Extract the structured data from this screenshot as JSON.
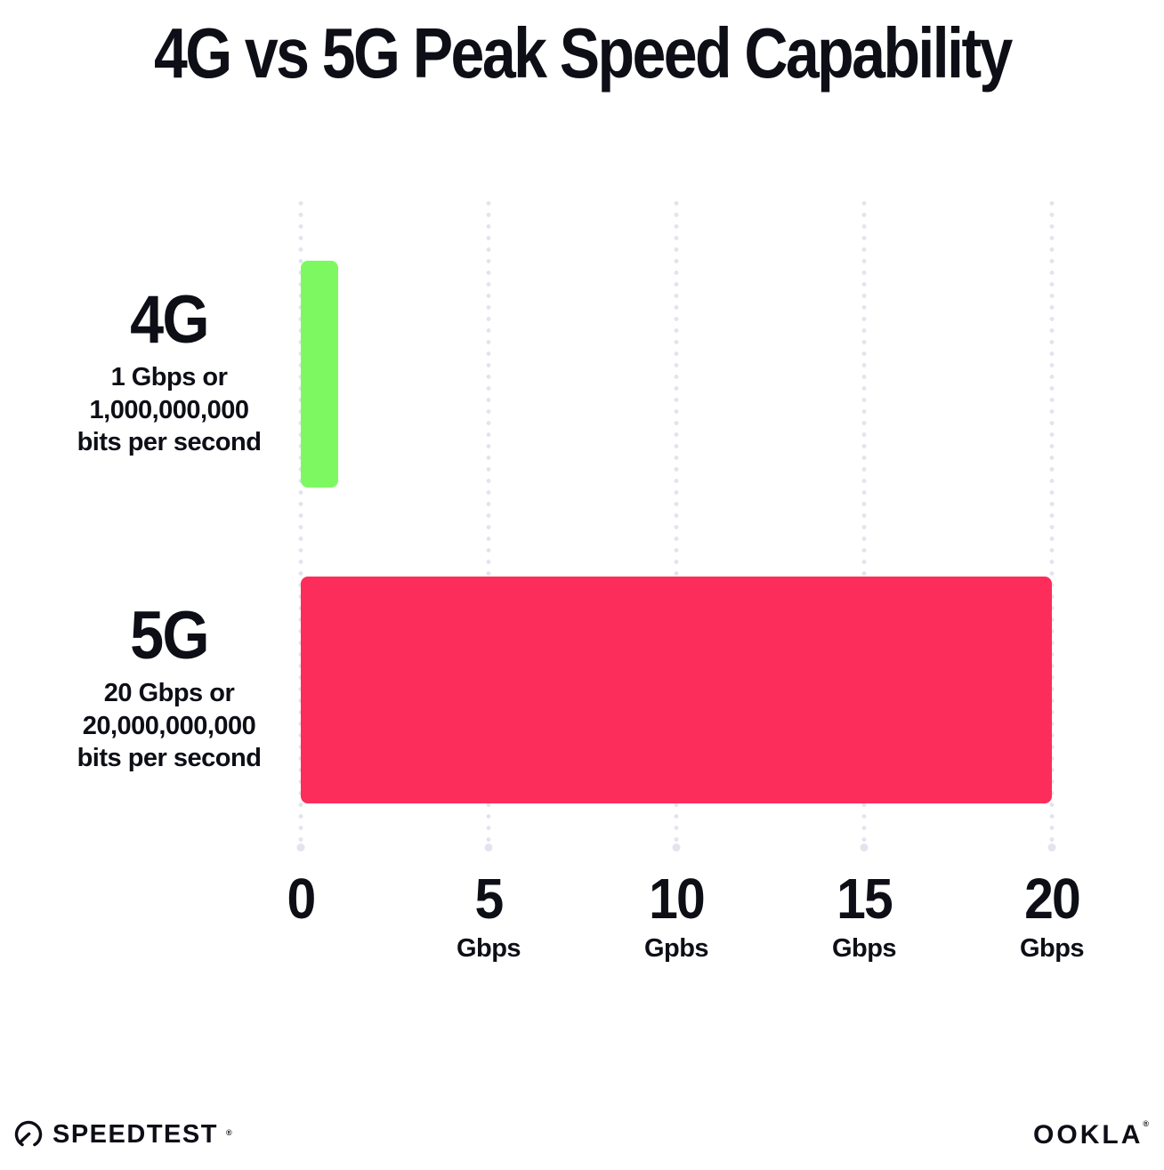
{
  "title": "4G vs 5G Peak Speed Capability",
  "colors": {
    "bar_4g": "#7EF861",
    "bar_5g": "#FC2D5A",
    "grid_dot": "#E3E4EE",
    "text": "#0D0E16",
    "background": "#FFFFFF"
  },
  "chart_data": {
    "type": "bar",
    "orientation": "horizontal",
    "title": "4G vs 5G Peak Speed Capability",
    "categories": [
      "4G",
      "5G"
    ],
    "values": [
      1,
      20
    ],
    "xlabel": "Gbps",
    "xlim": [
      0,
      20
    ],
    "grid": "dotted-vertical",
    "legend": "none",
    "bars": [
      {
        "label": "4G",
        "value": 1,
        "color": "#7EF861",
        "sublabel_lines": [
          "1 Gbps or",
          "1,000,000,000",
          "bits per second"
        ]
      },
      {
        "label": "5G",
        "value": 20,
        "color": "#FC2D5A",
        "sublabel_lines": [
          "20 Gbps or",
          "20,000,000,000",
          "bits per second"
        ]
      }
    ],
    "x_ticks": [
      {
        "value": 0,
        "label": "0",
        "unit": ""
      },
      {
        "value": 5,
        "label": "5",
        "unit": "Gbps"
      },
      {
        "value": 10,
        "label": "10",
        "unit": "Gpbs"
      },
      {
        "value": 15,
        "label": "15",
        "unit": "Gbps"
      },
      {
        "value": 20,
        "label": "20",
        "unit": "Gbps"
      }
    ]
  },
  "footer": {
    "speedtest_label": "SPEEDTEST",
    "speedtest_mark": "®",
    "ookla_label": "OOKLA",
    "ookla_mark": "®"
  }
}
